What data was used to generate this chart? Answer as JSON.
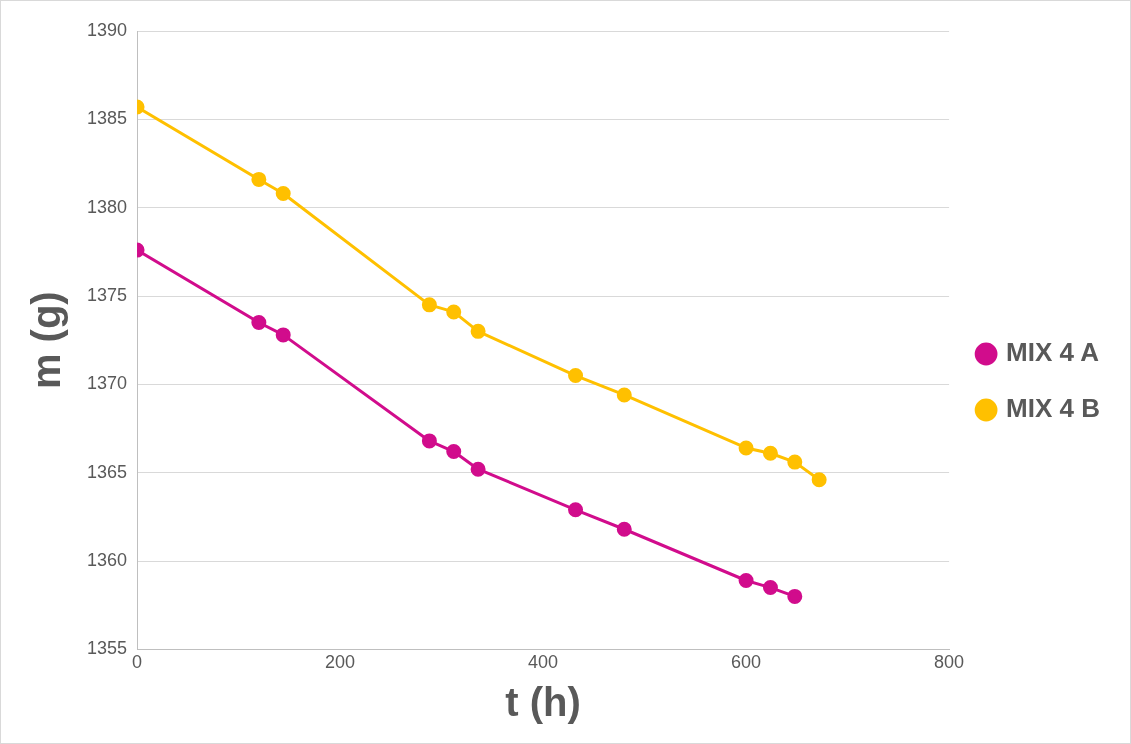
{
  "chart_data": {
    "type": "line",
    "xlabel": "t (h)",
    "ylabel": "m (g)",
    "xlim": [
      0,
      800
    ],
    "xticks": [
      0,
      200,
      400,
      600,
      800
    ],
    "ylim": [
      1355,
      1390
    ],
    "yticks": [
      1355,
      1360,
      1365,
      1370,
      1375,
      1380,
      1385,
      1390
    ],
    "grid": "y",
    "legend": "right",
    "marker": "circle",
    "line_style": "solid",
    "series": [
      {
        "name": "MIX 4 A",
        "color": "#d10c8c",
        "x": [
          0,
          120,
          144,
          288,
          312,
          336,
          432,
          480,
          600,
          624,
          648
        ],
        "values": [
          1377.6,
          1373.5,
          1372.8,
          1366.8,
          1366.2,
          1365.2,
          1362.9,
          1361.8,
          1358.9,
          1358.5,
          1358.0
        ]
      },
      {
        "name": "MIX 4 B",
        "color": "#ffc000",
        "x": [
          0,
          120,
          144,
          288,
          312,
          336,
          432,
          480,
          600,
          624,
          648,
          672
        ],
        "values": [
          1385.7,
          1381.6,
          1380.8,
          1374.5,
          1374.1,
          1373.0,
          1370.5,
          1369.4,
          1366.4,
          1366.1,
          1365.6,
          1364.6
        ]
      }
    ]
  }
}
